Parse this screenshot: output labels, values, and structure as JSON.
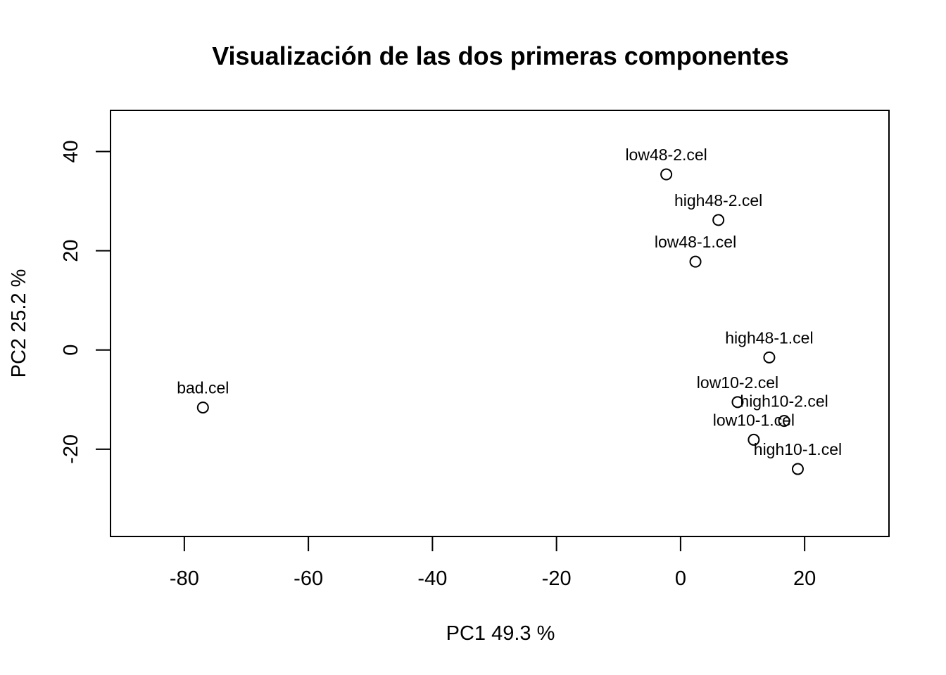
{
  "chart_data": {
    "type": "scatter",
    "title": "Visualización de las dos primeras componentes",
    "xlabel": "PC1 49.3 %",
    "ylabel": "PC2 25.2 %",
    "xlim": [
      -91.9,
      33.6
    ],
    "ylim": [
      -37.6,
      48.3
    ],
    "xticks": [
      -80,
      -60,
      -40,
      -20,
      0,
      20
    ],
    "yticks": [
      -20,
      0,
      20,
      40
    ],
    "grid": false,
    "legend": "none",
    "marker": "open-circle",
    "points": [
      {
        "label": "bad.cel",
        "x": -77.0,
        "y": -11.6
      },
      {
        "label": "low48-2.cel",
        "x": -2.3,
        "y": 35.4
      },
      {
        "label": "high48-2.cel",
        "x": 6.1,
        "y": 26.2
      },
      {
        "label": "low48-1.cel",
        "x": 2.4,
        "y": 17.8
      },
      {
        "label": "high48-1.cel",
        "x": 14.3,
        "y": -1.5
      },
      {
        "label": "low10-2.cel",
        "x": 9.2,
        "y": -10.5
      },
      {
        "label": "high10-2.cel",
        "x": 16.7,
        "y": -14.3
      },
      {
        "label": "low10-1.cel",
        "x": 11.8,
        "y": -18.1
      },
      {
        "label": "high10-1.cel",
        "x": 18.9,
        "y": -24.0
      }
    ]
  }
}
